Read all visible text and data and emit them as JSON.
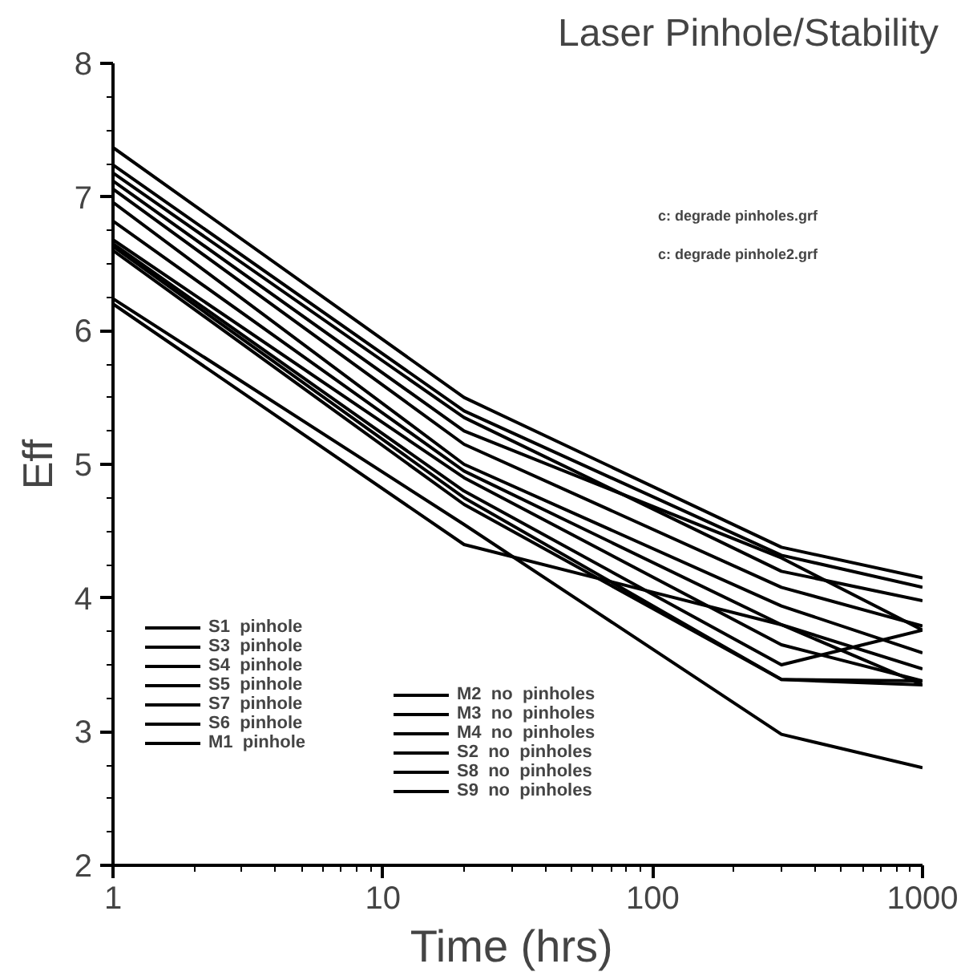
{
  "chart_data": {
    "type": "line",
    "title": "Laser Pinhole/Stability",
    "xlabel": "Time  (hrs)",
    "ylabel": "Eff",
    "log": "x",
    "x": [
      1,
      20,
      300,
      1000
    ],
    "xlim": [
      1,
      1000
    ],
    "xticks": [
      1,
      10,
      100,
      1000
    ],
    "ylim": [
      2,
      8
    ],
    "yticks": [
      2,
      3,
      4,
      5,
      6,
      7,
      8
    ],
    "grid": false,
    "legend": "bottom left",
    "line_style": "solid",
    "annotations": [
      "c: degrade pinholes.grf",
      "c: degrade pinhole2.grf"
    ],
    "series": [
      {
        "name": "S1  pinhole",
        "color": "#000000",
        "values": [
          7.37,
          5.5,
          4.38,
          4.15
        ]
      },
      {
        "name": "S3  pinhole",
        "color": "#000000",
        "values": [
          7.24,
          5.4,
          4.32,
          4.08
        ]
      },
      {
        "name": "S4  pinhole",
        "color": "#000000",
        "values": [
          7.18,
          5.35,
          4.2,
          3.98
        ]
      },
      {
        "name": "S5  pinhole",
        "color": "#000000",
        "values": [
          7.12,
          5.25,
          4.3,
          3.76
        ]
      },
      {
        "name": "S7  pinhole",
        "color": "#000000",
        "values": [
          7.06,
          5.15,
          4.08,
          3.79
        ]
      },
      {
        "name": "S6  pinhole",
        "color": "#000000",
        "values": [
          6.96,
          5.0,
          3.94,
          3.59
        ]
      },
      {
        "name": "M1  pinhole",
        "color": "#000000",
        "values": [
          6.82,
          4.95,
          3.8,
          3.47
        ]
      },
      {
        "name": "M2  no  pinholes",
        "color": "#000000",
        "values": [
          6.68,
          4.9,
          3.65,
          3.38
        ]
      },
      {
        "name": "M3  no  pinholes",
        "color": "#000000",
        "values": [
          6.65,
          4.8,
          3.5,
          3.76
        ]
      },
      {
        "name": "M4  no  pinholes",
        "color": "#000000",
        "values": [
          6.63,
          4.75,
          3.39,
          3.35
        ]
      },
      {
        "name": "S2  no  pinholes",
        "color": "#000000",
        "values": [
          6.6,
          4.7,
          3.39,
          3.38
        ]
      },
      {
        "name": "S8  no  pinholes",
        "color": "#000000",
        "values": [
          6.24,
          4.55,
          2.98,
          2.73
        ]
      },
      {
        "name": "S9  no  pinholes",
        "color": "#000000",
        "values": [
          6.2,
          4.4,
          3.8,
          3.35
        ]
      }
    ]
  }
}
